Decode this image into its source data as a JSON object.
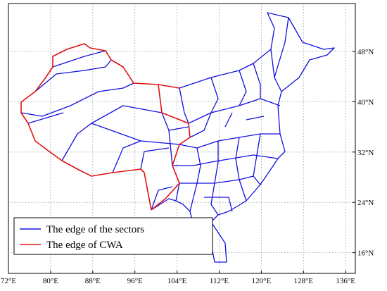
{
  "map": {
    "xticks": [
      "72°E",
      "80°E",
      "88°E",
      "96°E",
      "104°E",
      "112°E",
      "120°E",
      "128°E",
      "136°E"
    ],
    "yticks": [
      "48°N",
      "40°N",
      "32°N",
      "24°N",
      "16°N"
    ],
    "legend": [
      "The edge of the sectors",
      "The edge of CWA"
    ]
  }
}
